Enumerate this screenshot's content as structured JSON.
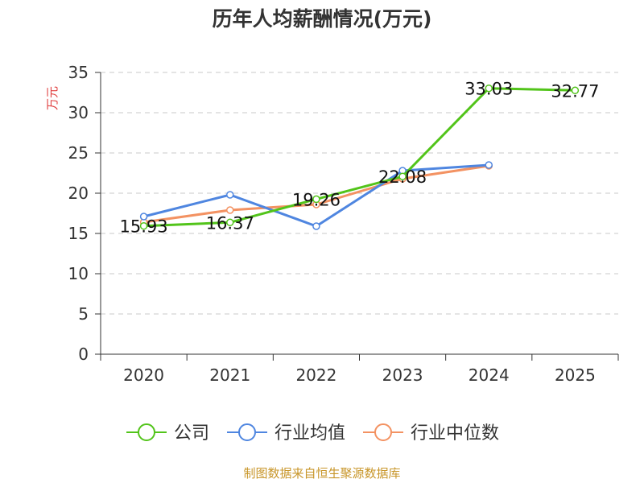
{
  "chart_data": {
    "type": "line",
    "title": "历年人均薪酬情况(万元)",
    "ylabel": "万元",
    "xlabel": "",
    "categories": [
      "2020",
      "2021",
      "2022",
      "2023",
      "2024",
      "2025"
    ],
    "ylim": [
      0,
      35
    ],
    "yticks": [
      "0",
      "5",
      "10",
      "15",
      "20",
      "25",
      "30",
      "35"
    ],
    "grid": true,
    "legend_position": "bottom",
    "series": [
      {
        "name": "公司",
        "color": "#52c41a",
        "values": [
          15.93,
          16.37,
          19.26,
          22.08,
          33.03,
          32.77
        ],
        "labels": [
          "15.93",
          "16.37",
          "19.26",
          "22.08",
          "33.03",
          "32.77"
        ]
      },
      {
        "name": "行业均值",
        "color": "#4f86e0",
        "values": [
          17.1,
          19.8,
          15.9,
          22.8,
          23.5,
          null
        ]
      },
      {
        "name": "行业中位数",
        "color": "#f39262",
        "values": [
          16.4,
          17.9,
          18.6,
          21.8,
          23.4,
          null
        ]
      }
    ]
  },
  "source": "制图数据来自恒生聚源数据库"
}
